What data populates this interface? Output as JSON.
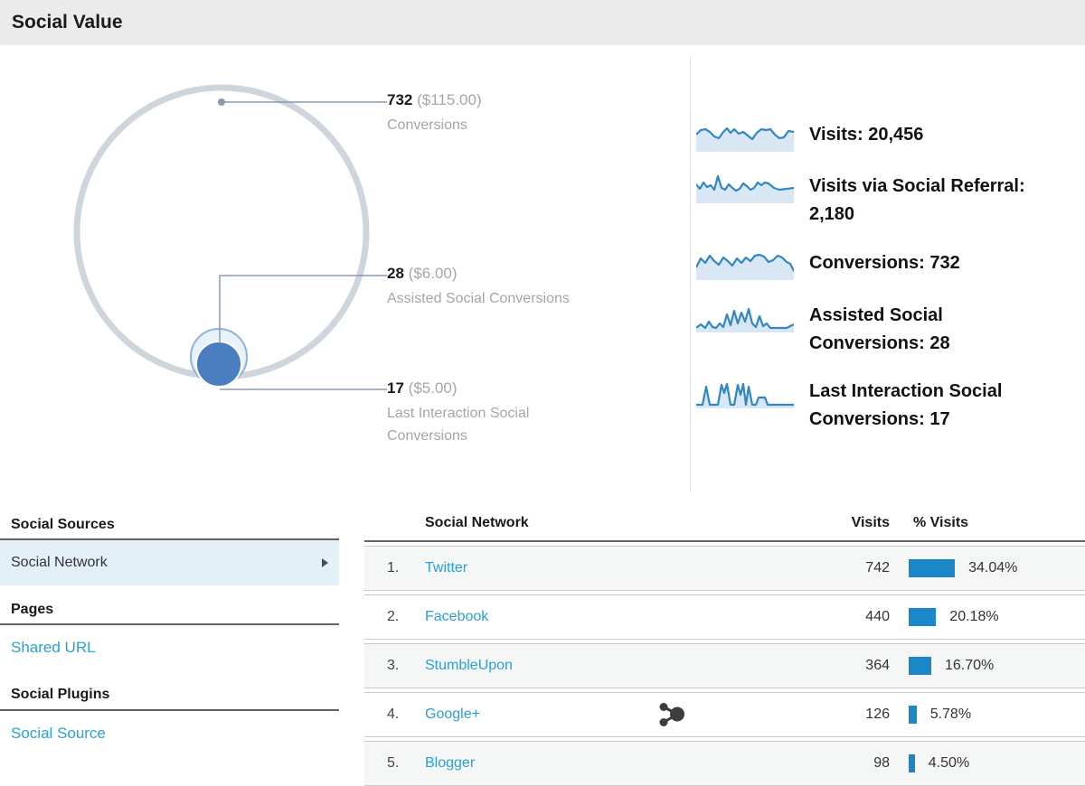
{
  "title": "Social Value",
  "accent_colors": {
    "bar_blue": "#1b87c9",
    "link_blue": "#29a3d8",
    "spark_line": "#3287c2",
    "spark_fill": "#d9e7f4",
    "inner_circle": "#4a7ec0",
    "outer_ring": "#cfd5dc"
  },
  "venn": {
    "callouts": [
      {
        "value": "732",
        "money": "($115.00)",
        "label": "Conversions"
      },
      {
        "value": "28",
        "money": "($6.00)",
        "label": "Assisted Social Conversions"
      },
      {
        "value": "17",
        "money": "($5.00)",
        "label": "Last Interaction Social Conversions"
      }
    ]
  },
  "legend": {
    "rows": [
      {
        "name": "visits",
        "lines": [
          "Visits: 20,456"
        ],
        "spark": [
          [
            0,
            15
          ],
          [
            5,
            10
          ],
          [
            10,
            9
          ],
          [
            15,
            12
          ],
          [
            20,
            17
          ],
          [
            25,
            19
          ],
          [
            30,
            12
          ],
          [
            34,
            8
          ],
          [
            38,
            13
          ],
          [
            42,
            9
          ],
          [
            47,
            14
          ],
          [
            52,
            12
          ],
          [
            57,
            16
          ],
          [
            62,
            20
          ],
          [
            67,
            13
          ],
          [
            72,
            9
          ],
          [
            77,
            10
          ],
          [
            82,
            9
          ],
          [
            87,
            15
          ],
          [
            92,
            19
          ],
          [
            97,
            18
          ],
          [
            102,
            11
          ],
          [
            108,
            12
          ]
        ]
      },
      {
        "name": "visits-via-social-referral",
        "lines": [
          "Visits via Social Referral:",
          "2,180"
        ],
        "spark": [
          [
            0,
            13
          ],
          [
            4,
            18
          ],
          [
            8,
            11
          ],
          [
            12,
            16
          ],
          [
            16,
            14
          ],
          [
            20,
            19
          ],
          [
            24,
            4
          ],
          [
            28,
            17
          ],
          [
            32,
            19
          ],
          [
            36,
            13
          ],
          [
            40,
            17
          ],
          [
            44,
            20
          ],
          [
            48,
            18
          ],
          [
            52,
            12
          ],
          [
            56,
            15
          ],
          [
            60,
            19
          ],
          [
            64,
            17
          ],
          [
            68,
            11
          ],
          [
            72,
            14
          ],
          [
            76,
            11
          ],
          [
            80,
            12
          ],
          [
            86,
            17
          ],
          [
            92,
            19
          ],
          [
            100,
            18
          ],
          [
            108,
            17
          ]
        ]
      },
      {
        "name": "conversions",
        "lines": [
          "Conversions: 732"
        ],
        "spark": [
          [
            0,
            20
          ],
          [
            5,
            10
          ],
          [
            10,
            15
          ],
          [
            15,
            7
          ],
          [
            20,
            13
          ],
          [
            25,
            17
          ],
          [
            30,
            9
          ],
          [
            35,
            13
          ],
          [
            40,
            18
          ],
          [
            45,
            10
          ],
          [
            50,
            15
          ],
          [
            55,
            9
          ],
          [
            60,
            13
          ],
          [
            65,
            7
          ],
          [
            70,
            6
          ],
          [
            75,
            8
          ],
          [
            80,
            14
          ],
          [
            85,
            12
          ],
          [
            90,
            7
          ],
          [
            95,
            9
          ],
          [
            100,
            14
          ],
          [
            104,
            16
          ],
          [
            108,
            24
          ]
        ]
      },
      {
        "name": "assisted-social-conversions",
        "lines": [
          "Assisted Social",
          "Conversions: 28"
        ],
        "spark": [
          [
            0,
            29
          ],
          [
            5,
            25
          ],
          [
            10,
            29
          ],
          [
            14,
            22
          ],
          [
            18,
            28
          ],
          [
            22,
            29
          ],
          [
            26,
            24
          ],
          [
            30,
            28
          ],
          [
            34,
            14
          ],
          [
            38,
            26
          ],
          [
            42,
            10
          ],
          [
            46,
            24
          ],
          [
            50,
            12
          ],
          [
            54,
            22
          ],
          [
            58,
            8
          ],
          [
            62,
            24
          ],
          [
            66,
            28
          ],
          [
            70,
            16
          ],
          [
            74,
            27
          ],
          [
            78,
            24
          ],
          [
            82,
            29
          ],
          [
            88,
            29
          ],
          [
            94,
            29
          ],
          [
            100,
            29
          ],
          [
            108,
            25
          ]
        ]
      },
      {
        "name": "last-interaction-social-conversions",
        "lines": [
          "Last Interaction Social",
          "Conversions: 17"
        ],
        "spark": [
          [
            0,
            30
          ],
          [
            7,
            30
          ],
          [
            11,
            10
          ],
          [
            15,
            30
          ],
          [
            24,
            30
          ],
          [
            28,
            8
          ],
          [
            31,
            17
          ],
          [
            34,
            7
          ],
          [
            38,
            30
          ],
          [
            42,
            30
          ],
          [
            46,
            8
          ],
          [
            49,
            19
          ],
          [
            52,
            7
          ],
          [
            55,
            30
          ],
          [
            58,
            10
          ],
          [
            62,
            30
          ],
          [
            66,
            30
          ],
          [
            69,
            22
          ],
          [
            76,
            22
          ],
          [
            79,
            30
          ],
          [
            90,
            30
          ],
          [
            108,
            30
          ]
        ]
      }
    ]
  },
  "sidebar": {
    "sections": [
      {
        "heading": "Social Sources",
        "items": [
          {
            "label": "Social Network",
            "selected": true
          }
        ]
      },
      {
        "heading": "Pages",
        "items": [
          {
            "label": "Shared URL",
            "link": true
          }
        ]
      },
      {
        "heading": "Social Plugins",
        "items": [
          {
            "label": "Social Source",
            "link": true
          }
        ]
      }
    ]
  },
  "table": {
    "columns": {
      "network": "Social Network",
      "visits": "Visits",
      "pct": "% Visits"
    },
    "rows": [
      {
        "rank": "1.",
        "network": "Twitter",
        "visits": "742",
        "pct": 34.04,
        "pct_label": "34.04%",
        "hub_icon": false
      },
      {
        "rank": "2.",
        "network": "Facebook",
        "visits": "440",
        "pct": 20.18,
        "pct_label": "20.18%",
        "hub_icon": false
      },
      {
        "rank": "3.",
        "network": "StumbleUpon",
        "visits": "364",
        "pct": 16.7,
        "pct_label": "16.70%",
        "hub_icon": false
      },
      {
        "rank": "4.",
        "network": "Google+",
        "visits": "126",
        "pct": 5.78,
        "pct_label": "5.78%",
        "hub_icon": true
      },
      {
        "rank": "5.",
        "network": "Blogger",
        "visits": "98",
        "pct": 4.5,
        "pct_label": "4.50%",
        "hub_icon": false
      }
    ]
  },
  "chart_data": [
    {
      "type": "area",
      "title": "Social value overlap diagram",
      "series": [
        {
          "name": "Conversions",
          "value": 732,
          "monetary_value": "$115.00"
        },
        {
          "name": "Assisted Social Conversions",
          "value": 28,
          "monetary_value": "$6.00"
        },
        {
          "name": "Last Interaction Social Conversions",
          "value": 17,
          "monetary_value": "$5.00"
        }
      ],
      "summary_stats": {
        "Visits": 20456,
        "Visits via Social Referral": 2180,
        "Conversions": 732,
        "Assisted Social Conversions": 28,
        "Last Interaction Social Conversions": 17
      },
      "legend_position": "right"
    },
    {
      "type": "table",
      "title": "Social Network visits",
      "columns": [
        "Social Network",
        "Visits",
        "% Visits"
      ],
      "rows": [
        [
          "Twitter",
          742,
          34.04
        ],
        [
          "Facebook",
          440,
          20.18
        ],
        [
          "StumbleUpon",
          364,
          16.7
        ],
        [
          "Google+",
          126,
          5.78
        ],
        [
          "Blogger",
          98,
          4.5
        ]
      ]
    }
  ]
}
